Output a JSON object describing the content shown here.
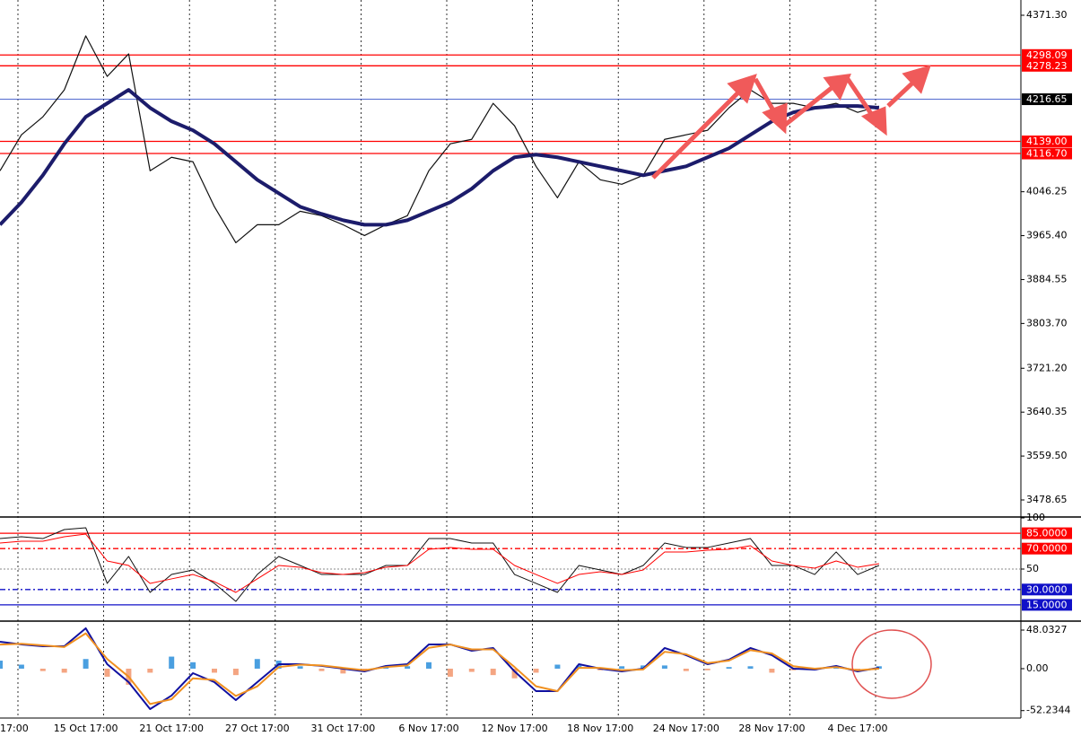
{
  "chart_data": [
    {
      "type": "line",
      "categories": [
        "17:00",
        null,
        null,
        null,
        "15 Oct 17:00",
        null,
        null,
        null,
        "21 Oct 17:00",
        null,
        null,
        null,
        "27 Oct 17:00",
        null,
        null,
        null,
        "31 Oct 17:00",
        null,
        null,
        null,
        "6 Nov 17:00",
        null,
        null,
        null,
        "12 Nov 17:00",
        null,
        null,
        null,
        "18 Nov 17:00",
        null,
        null,
        null,
        "24 Nov 17:00",
        null,
        null,
        null,
        "28 Nov 17:00",
        null,
        null,
        null,
        "4 Dec 17:00",
        null
      ],
      "ylim": [
        3448.9,
        4399.4
      ],
      "yticks": [
        {
          "value": 4371.3,
          "label": "4371.30"
        },
        {
          "value": 4046.25,
          "label": "4046.25"
        },
        {
          "value": 3965.4,
          "label": "3965.40"
        },
        {
          "value": 3884.55,
          "label": "3884.55"
        },
        {
          "value": 3803.7,
          "label": "3803.70"
        },
        {
          "value": 3721.2,
          "label": "3721.20"
        },
        {
          "value": 3640.35,
          "label": "3640.35"
        },
        {
          "value": 3559.5,
          "label": "3559.50"
        },
        {
          "value": 3478.65,
          "label": "3478.65"
        }
      ],
      "series": [
        {
          "color": "#111111",
          "line_width": 1.2,
          "values": [
            4084.9,
            4151.1,
            4184.2,
            4233.9,
            4333.3,
            4258.7,
            4300.1,
            4084.9,
            4109.7,
            4101.4,
            4018.6,
            3952.4,
            3985.5,
            3985.5,
            4010.3,
            4002.1,
            3985.5,
            3965.6,
            3985.5,
            4002.1,
            4084.9,
            4134.6,
            4142.8,
            4209.1,
            4167.7,
            4093.1,
            4035.2,
            4101.4,
            4068.3,
            4060.0,
            4076.6,
            4142.8,
            4151.1,
            4159.4,
            4200.8,
            4233.9,
            4209.1,
            4209.1,
            4200.8,
            4209.1,
            4192.5,
            4204.1
          ]
        },
        {
          "color": "#1c1c6b",
          "line_width": 4,
          "values": [
            3985.5,
            4026.9,
            4076.6,
            4134.6,
            4184.2,
            4209.1,
            4233.9,
            4200.8,
            4176.0,
            4159.4,
            4134.6,
            4101.4,
            4068.3,
            4043.5,
            4018.6,
            4005.4,
            3993.8,
            3985.5,
            3985.5,
            3993.8,
            4010.3,
            4026.9,
            4051.7,
            4084.9,
            4109.7,
            4114.7,
            4109.7,
            4101.4,
            4093.1,
            4084.9,
            4076.6,
            4084.9,
            4093.1,
            4109.7,
            4126.3,
            4151.1,
            4176.0,
            4192.5,
            4200.8,
            4204.1,
            4204.1,
            4200.8
          ]
        }
      ],
      "levels": [
        {
          "value": 4298.09,
          "label": "4298.09",
          "color": "#ff0000"
        },
        {
          "value": 4278.23,
          "label": "4278.23",
          "color": "#ff0000"
        },
        {
          "value": 4139.0,
          "label": "4139.00",
          "color": "#ff0000"
        },
        {
          "value": 4116.7,
          "label": "4116.70",
          "color": "#ff0000"
        },
        {
          "value": 4216.65,
          "label": "4216.65",
          "color": "#000000",
          "line_color": "#3a55c8"
        }
      ]
    },
    {
      "type": "line",
      "ylim": [
        0,
        100
      ],
      "yticks": [
        100,
        50
      ],
      "series": [
        {
          "color": "#111111",
          "line_width": 1,
          "values": [
            79.8,
            81.6,
            79.8,
            88.6,
            90.4,
            36.0,
            62.3,
            27.2,
            44.7,
            49.1,
            36.0,
            18.4,
            44.7,
            62.3,
            53.5,
            44.7,
            44.7,
            44.7,
            53.5,
            53.5,
            79.8,
            79.8,
            75.4,
            75.4,
            44.7,
            36.0,
            27.2,
            53.5,
            49.1,
            44.7,
            53.5,
            75.4,
            71.1,
            71.1,
            75.4,
            79.8,
            53.5,
            53.5,
            44.7,
            66.7,
            44.7,
            53.5
          ]
        },
        {
          "color": "#ff0000",
          "line_width": 1,
          "values": [
            75.4,
            77.2,
            77.2,
            81.6,
            84.2,
            57.9,
            53.5,
            36.0,
            40.4,
            44.7,
            37.7,
            27.2,
            40.4,
            53.5,
            51.8,
            46.5,
            44.7,
            46.5,
            51.8,
            53.5,
            69.3,
            71.1,
            69.3,
            69.3,
            53.5,
            44.7,
            36.0,
            44.7,
            47.4,
            44.7,
            49.1,
            66.7,
            66.7,
            68.4,
            69.3,
            72.8,
            57.9,
            53.5,
            50.9,
            57.9,
            51.8,
            55.3
          ]
        }
      ],
      "levels": [
        {
          "value": 85,
          "label": "85.0000",
          "color": "#ff0000",
          "dash": "none"
        },
        {
          "value": 70,
          "label": "70.0000",
          "color": "#ff0000",
          "dash": "6 3 2 3"
        },
        {
          "value": 30,
          "label": "30.0000",
          "color": "#1010c8",
          "dash": "6 3 2 3"
        },
        {
          "value": 15,
          "label": "15.0000",
          "color": "#1010c8",
          "dash": "none"
        }
      ]
    },
    {
      "type": "macd",
      "ylim": [
        -61.5,
        58.1
      ],
      "yticks": [
        48.0327,
        {
          "value": 0,
          "label": "0.00"
        },
        -52.2344
      ],
      "histogram": [
        10,
        5,
        -3,
        -5,
        12,
        -10,
        -20,
        -5,
        15,
        8,
        -5,
        -8,
        12,
        10,
        3,
        -3,
        -6,
        -3,
        2,
        3,
        8,
        -10,
        -4,
        -8,
        -12,
        -5,
        5,
        4,
        -2,
        3,
        4,
        4,
        -3,
        -2,
        2,
        3,
        -5,
        -2,
        -2,
        2,
        -3,
        3
      ],
      "positive_color": "#4a9fe0",
      "negative_color": "#f4a582",
      "series": [
        {
          "color": "#1010a0",
          "line_width": 2,
          "values": [
            33.5,
            30.2,
            27.9,
            27.9,
            50.3,
            5.6,
            -16.8,
            -50.3,
            -33.5,
            -5.6,
            -16.8,
            -39.1,
            -16.8,
            5.6,
            5.6,
            3.4,
            0,
            -3.4,
            3.4,
            5.6,
            30.2,
            30.2,
            22.3,
            25.7,
            -3.4,
            -27.9,
            -27.9,
            5.6,
            0,
            -3.4,
            0,
            25.7,
            16.8,
            5.6,
            11.2,
            25.7,
            16.8,
            0,
            -1.1,
            3.4,
            -3.4,
            1.1
          ]
        },
        {
          "color": "#f09020",
          "line_width": 2,
          "values": [
            30.0,
            31.0,
            29.0,
            27.0,
            44.0,
            12.0,
            -10.0,
            -44.0,
            -38.0,
            -12.0,
            -14.0,
            -34.0,
            -22.0,
            2.0,
            5.0,
            4.0,
            1.0,
            -2.0,
            2.0,
            4.0,
            26.0,
            30.0,
            24.0,
            24.0,
            2.0,
            -22.0,
            -28.0,
            1.0,
            1.0,
            -2.0,
            -1.0,
            21.0,
            18.0,
            7.0,
            10.0,
            23.0,
            19.0,
            3.0,
            0.0,
            2.0,
            -2.0,
            0.0
          ]
        }
      ]
    }
  ]
}
